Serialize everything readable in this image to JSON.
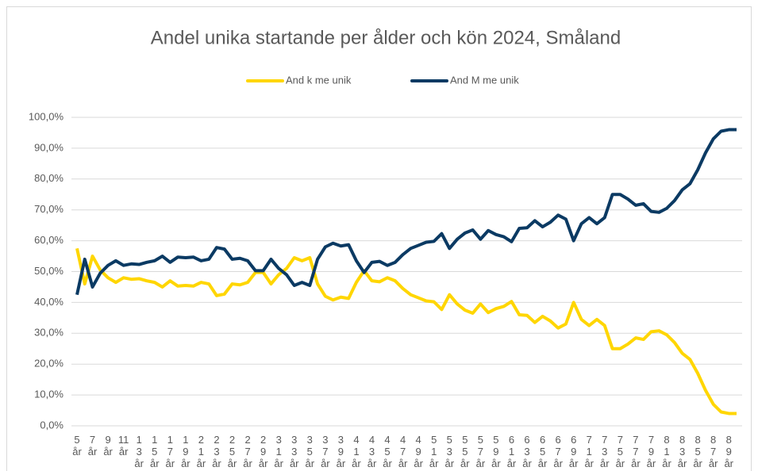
{
  "chart_data": {
    "type": "line",
    "title": "Andel unika startande per ålder och kön 2024, Småland",
    "categories": [
      "5 år",
      null,
      "7 år",
      null,
      "9 år",
      null,
      "11 år",
      null,
      "13 år",
      null,
      "15 år",
      null,
      "17 år",
      null,
      "19 år",
      null,
      "21 år",
      null,
      "23 år",
      null,
      "25 år",
      null,
      "27 år",
      null,
      "29 år",
      null,
      "31 år",
      null,
      "33 år",
      null,
      "35 år",
      null,
      "37 år",
      null,
      "39 år",
      null,
      "41 år",
      null,
      "43 år",
      null,
      "45 år",
      null,
      "47 år",
      null,
      "49 år",
      null,
      "51 år",
      null,
      "53 år",
      null,
      "55 år",
      null,
      "57 år",
      null,
      "59 år",
      null,
      "61 år",
      null,
      "63 år",
      null,
      "65 år",
      null,
      "67 år",
      null,
      "69 år",
      null,
      "71 år",
      null,
      "73 år",
      null,
      "75 år",
      null,
      "77 år",
      null,
      "79 år",
      null,
      "81 år",
      null,
      "83 år",
      null,
      "85 år",
      null,
      "87 år",
      null,
      "89 år",
      null
    ],
    "series": [
      {
        "name": "And k me unik",
        "color": "#ffd600",
        "values": [
          57.5,
          46,
          55,
          50.5,
          48,
          46.5,
          48,
          47.5,
          47.7,
          47,
          46.5,
          45,
          47,
          45.3,
          45.5,
          45.3,
          46.5,
          46,
          42.2,
          42.7,
          46,
          45.7,
          46.5,
          49.7,
          49.7,
          46,
          49,
          51,
          54.5,
          53.5,
          54.5,
          46,
          42,
          40.8,
          41.7,
          41.3,
          46.5,
          50.3,
          47,
          46.7,
          48,
          47,
          44.5,
          42.5,
          41.5,
          40.5,
          40.2,
          37.7,
          42.5,
          39.5,
          37.5,
          36.5,
          39.5,
          36.7,
          38,
          38.7,
          40.3,
          36,
          35.8,
          33.5,
          35.5,
          34,
          31.7,
          33,
          40,
          34.5,
          32.5,
          34.5,
          32.5,
          25,
          25,
          26.5,
          28.5,
          28,
          30.5,
          30.8,
          29.5,
          27,
          23.5,
          21.5,
          17,
          11.5,
          7,
          4.5,
          4,
          4
        ]
      },
      {
        "name": "And M me unik",
        "color": "#0b3a63",
        "values": [
          42.5,
          54,
          45,
          49.5,
          52,
          53.5,
          52,
          52.5,
          52.3,
          53,
          53.5,
          55,
          53,
          54.7,
          54.5,
          54.7,
          53.5,
          54,
          57.8,
          57.3,
          54,
          54.3,
          53.5,
          50.3,
          50.3,
          54,
          51,
          49,
          45.5,
          46.5,
          45.5,
          54,
          58,
          59.2,
          58.3,
          58.7,
          53.5,
          49.7,
          53,
          53.3,
          52,
          53,
          55.5,
          57.5,
          58.5,
          59.5,
          59.8,
          62.3,
          57.5,
          60.5,
          62.5,
          63.5,
          60.5,
          63.3,
          62,
          61.3,
          59.7,
          64,
          64.2,
          66.5,
          64.5,
          66,
          68.3,
          67,
          60,
          65.5,
          67.5,
          65.5,
          67.5,
          75,
          75,
          73.5,
          71.5,
          72,
          69.5,
          69.2,
          70.5,
          73,
          76.5,
          78.5,
          83,
          88.5,
          93,
          95.5,
          96,
          96
        ]
      }
    ],
    "ylim": [
      0,
      100
    ],
    "yticks": [
      {
        "value": 0,
        "label": "0,0%"
      },
      {
        "value": 10,
        "label": "10,0%"
      },
      {
        "value": 20,
        "label": "20,0%"
      },
      {
        "value": 30,
        "label": "30,0%"
      },
      {
        "value": 40,
        "label": "40,0%"
      },
      {
        "value": 50,
        "label": "50,0%"
      },
      {
        "value": 60,
        "label": "60,0%"
      },
      {
        "value": 70,
        "label": "70,0%"
      },
      {
        "value": 80,
        "label": "80,0%"
      },
      {
        "value": 90,
        "label": "90,0%"
      },
      {
        "value": 100,
        "label": "100,0%"
      }
    ],
    "grid": true,
    "legend": "top"
  }
}
